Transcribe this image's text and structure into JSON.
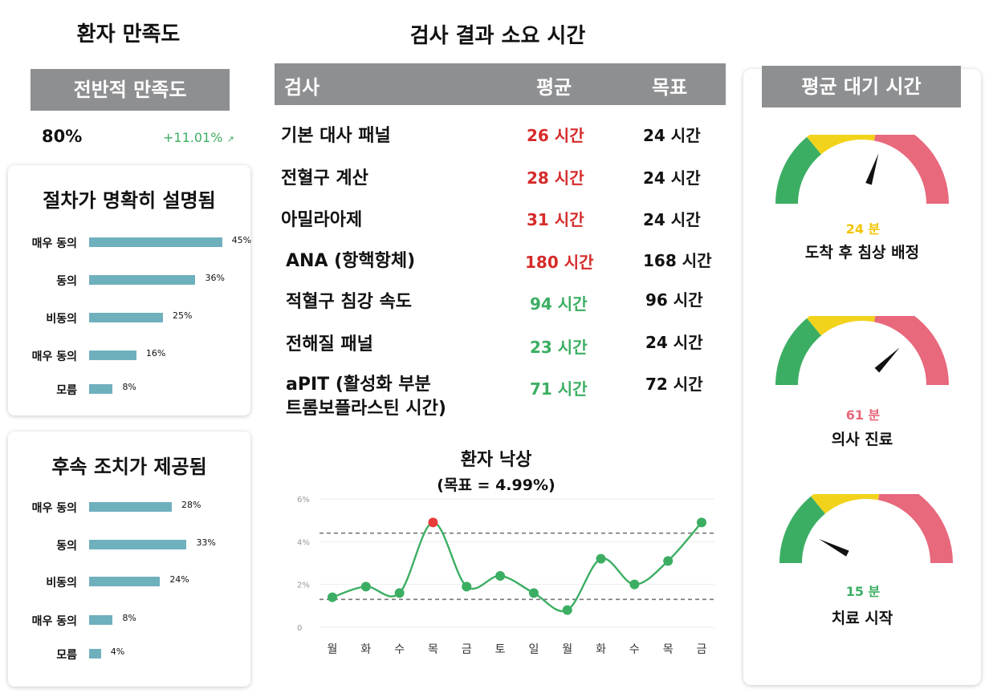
{
  "satisfaction": {
    "title": "환자 만족도",
    "overall_label": "전반적 만족도",
    "overall_value": "80%",
    "overall_change": "+11.01%",
    "colors": {
      "bar": "#6fb0bd",
      "positive": "#3cae63"
    },
    "cards": [
      {
        "title": "절차가 명확히 설명됨",
        "rows": [
          {
            "label": "매우 동의",
            "value": 45,
            "pct": "45%"
          },
          {
            "label": "동의",
            "value": 36,
            "pct": "36%"
          },
          {
            "label": "비동의",
            "value": 25,
            "pct": "25%"
          },
          {
            "label": "매우 동의",
            "value": 16,
            "pct": "16%"
          },
          {
            "label": "모름",
            "value": 8,
            "pct": "8%"
          }
        ]
      },
      {
        "title": "후속 조치가 제공됨",
        "rows": [
          {
            "label": "매우 동의",
            "value": 28,
            "pct": "28%"
          },
          {
            "label": "동의",
            "value": 33,
            "pct": "33%"
          },
          {
            "label": "비동의",
            "value": 24,
            "pct": "24%"
          },
          {
            "label": "매우 동의",
            "value": 8,
            "pct": "8%"
          },
          {
            "label": "모름",
            "value": 4,
            "pct": "4%"
          }
        ]
      }
    ]
  },
  "turnaround": {
    "title": "검사 결과 소요 시간",
    "headers": {
      "test": "검사",
      "avg": "평균",
      "target": "목표"
    },
    "colors": {
      "over": "#d62b2b",
      "under": "#3cae63"
    },
    "rows": [
      {
        "test": "기본 대사 패널",
        "avg": "26 시간",
        "target": "24 시간",
        "status": "over"
      },
      {
        "test": "전혈구 계산",
        "avg": "28 시간",
        "target": "24 시간",
        "status": "over"
      },
      {
        "test": "아밀라아제",
        "avg": "31 시간",
        "target": "24 시간",
        "status": "over"
      },
      {
        "test": "ANA (항핵항체)",
        "avg": "180 시간",
        "target": "168 시간",
        "status": "over"
      },
      {
        "test": "적혈구 침강 속도",
        "avg": "94 시간",
        "target": "96 시간",
        "status": "under"
      },
      {
        "test": "전해질 패널",
        "avg": "23 시간",
        "target": "24 시간",
        "status": "under"
      },
      {
        "test": "aPIT (활성화 부분",
        "test2": "트롬보플라스틴 시간)",
        "avg": "71 시간",
        "target": "72 시간",
        "status": "under"
      }
    ]
  },
  "chart_data": {
    "type": "line",
    "title": "환자 낙상",
    "subtitle": "(목표 = 4.99%)",
    "categories": [
      "월",
      "화",
      "수",
      "목",
      "금",
      "토",
      "일",
      "월",
      "화",
      "수",
      "목",
      "금"
    ],
    "x_index": [
      0,
      1,
      2,
      3,
      4,
      5,
      6,
      7,
      8,
      9,
      10,
      11
    ],
    "series": [
      {
        "values": [
          1.4,
          1.9,
          1.6,
          4.9,
          1.9,
          2.4,
          1.6,
          0.8,
          3.2,
          2.0,
          3.1,
          4.9
        ],
        "color": "#3cae63",
        "highlight_index": 3,
        "highlight_color": "#e83c3c"
      }
    ],
    "reference_lines": [
      4.4,
      1.3
    ],
    "yticks": [
      "0",
      "2%",
      "4%",
      "6%"
    ],
    "ytick_values": [
      0,
      2,
      4,
      6
    ],
    "ylim": [
      0,
      6
    ],
    "grid": true
  },
  "wait_times": {
    "title": "평균 대기 시간",
    "gauge_colors": [
      "#3cae63",
      "#f2d31b",
      "#e8687c"
    ],
    "gauges": [
      {
        "value_text": "24 분",
        "label": "도착 후 침상 배정",
        "level": 0.6,
        "color": "#f2c400"
      },
      {
        "value_text": "61 분",
        "label": "의사 진료",
        "level": 0.75,
        "color": "#e8687c"
      },
      {
        "value_text": "15 분",
        "label": "치료 시작",
        "level": 0.15,
        "color": "#3cae63"
      }
    ]
  }
}
